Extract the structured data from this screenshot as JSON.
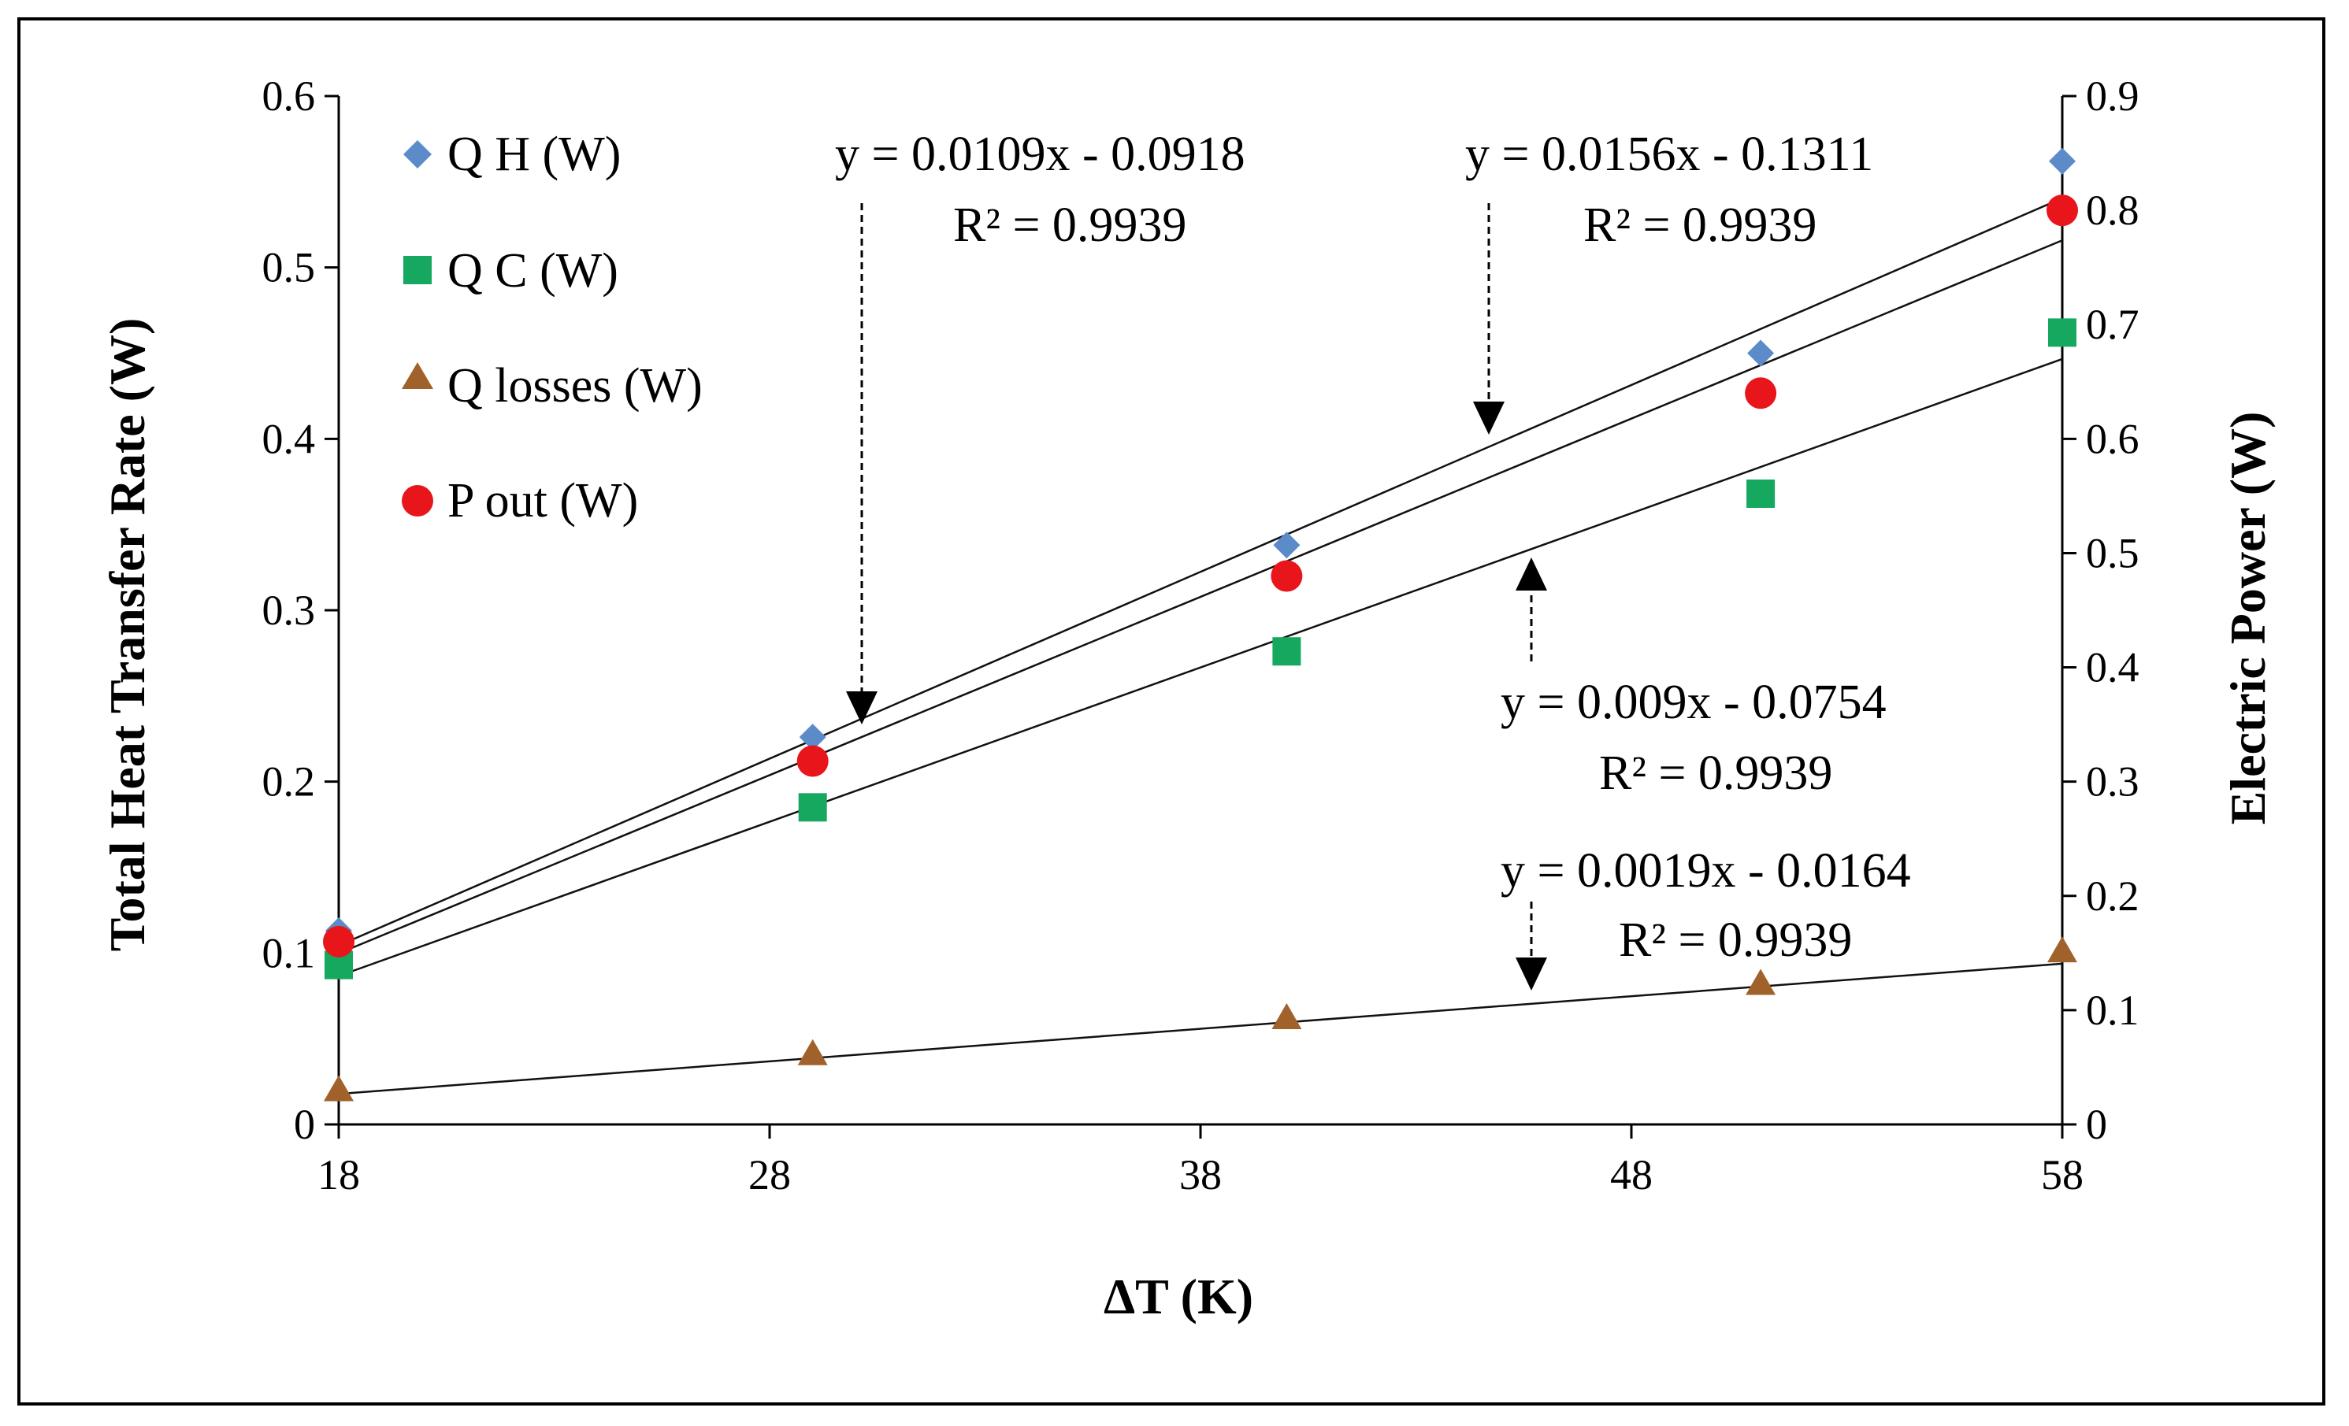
{
  "chart_data": {
    "type": "scatter",
    "title": "",
    "xlabel": "ΔT (K)",
    "ylabel": "Total Heat Transfer  Rate (W)",
    "y2label": "Electric Power (W)",
    "xlim": [
      18,
      58
    ],
    "ylim": [
      0,
      0.6
    ],
    "y2lim": [
      0,
      0.9
    ],
    "x_ticks": [
      "18",
      "28",
      "38",
      "48",
      "58"
    ],
    "y_ticks": [
      "0",
      "0.1",
      "0.2",
      "0.3",
      "0.4",
      "0.5",
      "0.6"
    ],
    "y2_ticks": [
      "0",
      "0.1",
      "0.2",
      "0.3",
      "0.4",
      "0.5",
      "0.6",
      "0.7",
      "0.8",
      "0.9"
    ],
    "grid": false,
    "legend_position": "top-left",
    "series": [
      {
        "name": "Q H (W)",
        "marker": "diamond",
        "color": "#5B8CC9",
        "axis": "left",
        "x": [
          18,
          29,
          40,
          51,
          58
        ],
        "y": [
          0.113,
          0.226,
          0.338,
          0.45,
          0.562
        ],
        "trend": {
          "slope": 0.0109,
          "intercept": -0.0918
        }
      },
      {
        "name": "Q C (W)",
        "marker": "square",
        "color": "#16A85F",
        "axis": "left",
        "x": [
          18,
          29,
          40,
          51,
          58
        ],
        "y": [
          0.093,
          0.185,
          0.276,
          0.368,
          0.462
        ],
        "trend": {
          "slope": 0.009,
          "intercept": -0.0754
        }
      },
      {
        "name": "Q losses (W)",
        "marker": "triangle",
        "color": "#A0622A",
        "axis": "left",
        "x": [
          18,
          29,
          40,
          51,
          58
        ],
        "y": [
          0.02,
          0.041,
          0.062,
          0.082,
          0.101
        ],
        "trend": {
          "slope": 0.0019,
          "intercept": -0.0164
        }
      },
      {
        "name": "P out (W)",
        "marker": "circle",
        "color": "#E8161B",
        "axis": "right",
        "x": [
          18,
          29,
          40,
          51,
          58
        ],
        "y": [
          0.16,
          0.318,
          0.48,
          0.64,
          0.8
        ],
        "trend": {
          "slope": 0.0156,
          "intercept": -0.1311
        }
      }
    ],
    "annotations": [
      {
        "equation": "y = 0.0109x - 0.0918",
        "r2": "R² = 0.9939"
      },
      {
        "equation": "y = 0.0156x - 0.1311",
        "r2": "R² = 0.9939"
      },
      {
        "equation": "y = 0.009x - 0.0754",
        "r2": "R² = 0.9939"
      },
      {
        "equation": "y = 0.0019x - 0.0164",
        "r2": "R² = 0.9939"
      }
    ]
  }
}
